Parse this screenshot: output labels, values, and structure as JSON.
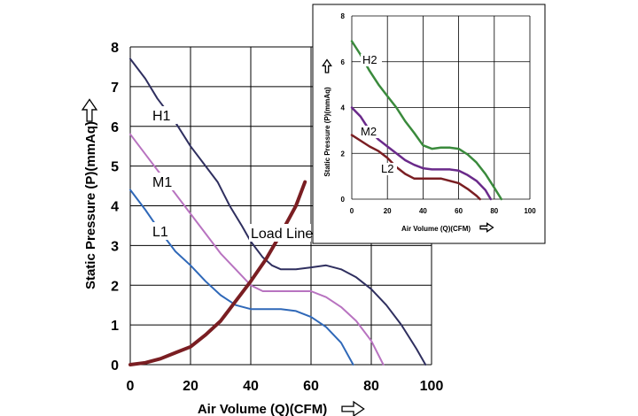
{
  "colors": {
    "H1": "#2f2f5f",
    "M1": "#b873c0",
    "L1": "#2f68b8",
    "load_line": "#7a1e22",
    "H2": "#3a8a3c",
    "M2": "#6a2a8a",
    "L2": "#7a1e22",
    "grid": "#000000"
  },
  "chart_data": [
    {
      "type": "line",
      "xlabel": "Air Volume (Q)(CFM)",
      "ylabel": "Static Pressure (P)(mmAq)",
      "arrow_icon": "right-arrow-outline-icon",
      "xlim": [
        0,
        100
      ],
      "ylim": [
        0,
        8
      ],
      "x_ticks": [
        "0",
        "20",
        "40",
        "60",
        "80",
        "100"
      ],
      "y_ticks": [
        "0",
        "1",
        "2",
        "3",
        "4",
        "5",
        "6",
        "7",
        "8"
      ],
      "grid": true,
      "series": [
        {
          "name": "H1",
          "values": [
            [
              0,
              7.7
            ],
            [
              5,
              7.2
            ],
            [
              9,
              6.7
            ],
            [
              15,
              6.1
            ],
            [
              20,
              5.5
            ],
            [
              25,
              5.0
            ],
            [
              29,
              4.6
            ],
            [
              33,
              4.0
            ],
            [
              37,
              3.5
            ],
            [
              40,
              3.1
            ],
            [
              44,
              2.7
            ],
            [
              47,
              2.5
            ],
            [
              50,
              2.4
            ],
            [
              55,
              2.4
            ],
            [
              60,
              2.45
            ],
            [
              65,
              2.5
            ],
            [
              70,
              2.4
            ],
            [
              75,
              2.2
            ],
            [
              80,
              1.9
            ],
            [
              85,
              1.5
            ],
            [
              90,
              1.0
            ],
            [
              95,
              0.4
            ],
            [
              98,
              0.0
            ]
          ]
        },
        {
          "name": "M1",
          "values": [
            [
              0,
              5.8
            ],
            [
              5,
              5.3
            ],
            [
              10,
              4.8
            ],
            [
              15,
              4.3
            ],
            [
              20,
              3.8
            ],
            [
              25,
              3.3
            ],
            [
              30,
              2.8
            ],
            [
              35,
              2.4
            ],
            [
              40,
              2.0
            ],
            [
              44,
              1.85
            ],
            [
              50,
              1.85
            ],
            [
              55,
              1.85
            ],
            [
              60,
              1.85
            ],
            [
              65,
              1.7
            ],
            [
              70,
              1.45
            ],
            [
              75,
              1.1
            ],
            [
              80,
              0.6
            ],
            [
              84,
              0.0
            ]
          ]
        },
        {
          "name": "L1",
          "values": [
            [
              0,
              4.4
            ],
            [
              5,
              3.9
            ],
            [
              10,
              3.35
            ],
            [
              15,
              2.85
            ],
            [
              20,
              2.5
            ],
            [
              25,
              2.1
            ],
            [
              30,
              1.75
            ],
            [
              35,
              1.5
            ],
            [
              40,
              1.4
            ],
            [
              45,
              1.4
            ],
            [
              50,
              1.4
            ],
            [
              55,
              1.35
            ],
            [
              60,
              1.2
            ],
            [
              65,
              0.95
            ],
            [
              70,
              0.55
            ],
            [
              74,
              0.0
            ]
          ]
        },
        {
          "name": "Load Line",
          "values": [
            [
              0,
              0.0
            ],
            [
              5,
              0.05
            ],
            [
              10,
              0.15
            ],
            [
              15,
              0.3
            ],
            [
              20,
              0.45
            ],
            [
              25,
              0.75
            ],
            [
              30,
              1.1
            ],
            [
              35,
              1.6
            ],
            [
              40,
              2.1
            ],
            [
              45,
              2.65
            ],
            [
              50,
              3.3
            ],
            [
              55,
              4.0
            ],
            [
              58,
              4.6
            ]
          ]
        }
      ]
    },
    {
      "type": "line",
      "xlabel": "Air Volume (Q)(CFM)",
      "ylabel": "Static Pressure (P)(mmAq)",
      "arrow_icon": "right-arrow-outline-icon",
      "xlim": [
        0,
        100
      ],
      "ylim": [
        0,
        8
      ],
      "x_ticks": [
        "0",
        "20",
        "40",
        "60",
        "80",
        "100"
      ],
      "y_ticks": [
        "0",
        "2",
        "4",
        "6",
        "8"
      ],
      "grid": true,
      "series": [
        {
          "name": "H2",
          "values": [
            [
              0,
              6.9
            ],
            [
              5,
              6.3
            ],
            [
              10,
              5.6
            ],
            [
              15,
              5.0
            ],
            [
              20,
              4.5
            ],
            [
              25,
              4.0
            ],
            [
              30,
              3.4
            ],
            [
              35,
              2.9
            ],
            [
              40,
              2.35
            ],
            [
              45,
              2.2
            ],
            [
              50,
              2.25
            ],
            [
              55,
              2.25
            ],
            [
              60,
              2.2
            ],
            [
              65,
              1.95
            ],
            [
              70,
              1.6
            ],
            [
              75,
              1.1
            ],
            [
              80,
              0.5
            ],
            [
              84,
              0.0
            ]
          ]
        },
        {
          "name": "M2",
          "values": [
            [
              0,
              4.0
            ],
            [
              5,
              3.6
            ],
            [
              10,
              3.0
            ],
            [
              15,
              2.6
            ],
            [
              20,
              2.3
            ],
            [
              25,
              2.0
            ],
            [
              30,
              1.7
            ],
            [
              35,
              1.5
            ],
            [
              40,
              1.35
            ],
            [
              45,
              1.3
            ],
            [
              50,
              1.3
            ],
            [
              55,
              1.3
            ],
            [
              60,
              1.25
            ],
            [
              65,
              1.05
            ],
            [
              70,
              0.8
            ],
            [
              75,
              0.4
            ],
            [
              78,
              0.0
            ]
          ]
        },
        {
          "name": "L2",
          "values": [
            [
              0,
              2.8
            ],
            [
              5,
              2.55
            ],
            [
              10,
              2.3
            ],
            [
              15,
              2.1
            ],
            [
              20,
              1.8
            ],
            [
              25,
              1.4
            ],
            [
              30,
              1.1
            ],
            [
              35,
              0.9
            ],
            [
              40,
              0.9
            ],
            [
              45,
              0.9
            ],
            [
              50,
              0.9
            ],
            [
              55,
              0.8
            ],
            [
              60,
              0.7
            ],
            [
              65,
              0.45
            ],
            [
              70,
              0.15
            ],
            [
              72,
              0.0
            ]
          ]
        }
      ]
    }
  ]
}
